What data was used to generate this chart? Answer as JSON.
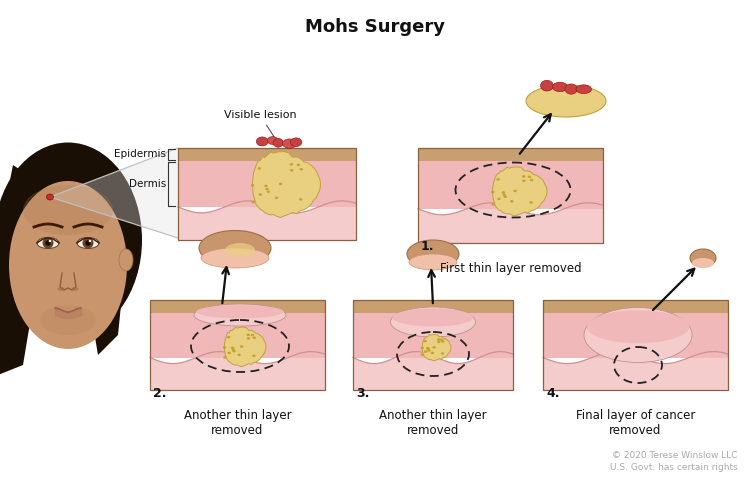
{
  "title": "Mohs Surgery",
  "title_fontsize": 13,
  "title_fontweight": "bold",
  "background_color": "#ffffff",
  "copyright_text": "© 2020 Terese Winslow LLC\nU.S. Govt. has certain rights",
  "copyright_color": "#aaaaaa",
  "copyright_fontsize": 6.5,
  "skin_top_color": "#c8a070",
  "skin_dermis_color": "#f0b8b8",
  "skin_wave_color": "#f5cccc",
  "cancer_fill": "#e8d080",
  "cancer_edge": "#c0a040",
  "lesion_red": "#c03030",
  "lesion_dark": "#901010",
  "dashed_color": "#222222",
  "arrow_color": "#111111",
  "text_color": "#111111",
  "label_gray": "#555555",
  "epidermis_label": "Epidermis",
  "dermis_label": "Dermis",
  "visible_lesion_label": "Visible lesion",
  "step_labels": [
    "First thin layer removed",
    "Another thin layer\nremoved",
    "Another thin layer\nremoved",
    "Final layer of cancer\nremoved"
  ],
  "step_numbers": [
    "1.",
    "2.",
    "3.",
    "4."
  ],
  "face_skin": "#c8956c",
  "face_skin2": "#b07850",
  "face_hair": "#1a0f05",
  "face_eye_white": "#f0ede8",
  "face_iris": "#6b4226",
  "face_pupil": "#1a0a00",
  "pullout_gray": "#c0c0c0"
}
